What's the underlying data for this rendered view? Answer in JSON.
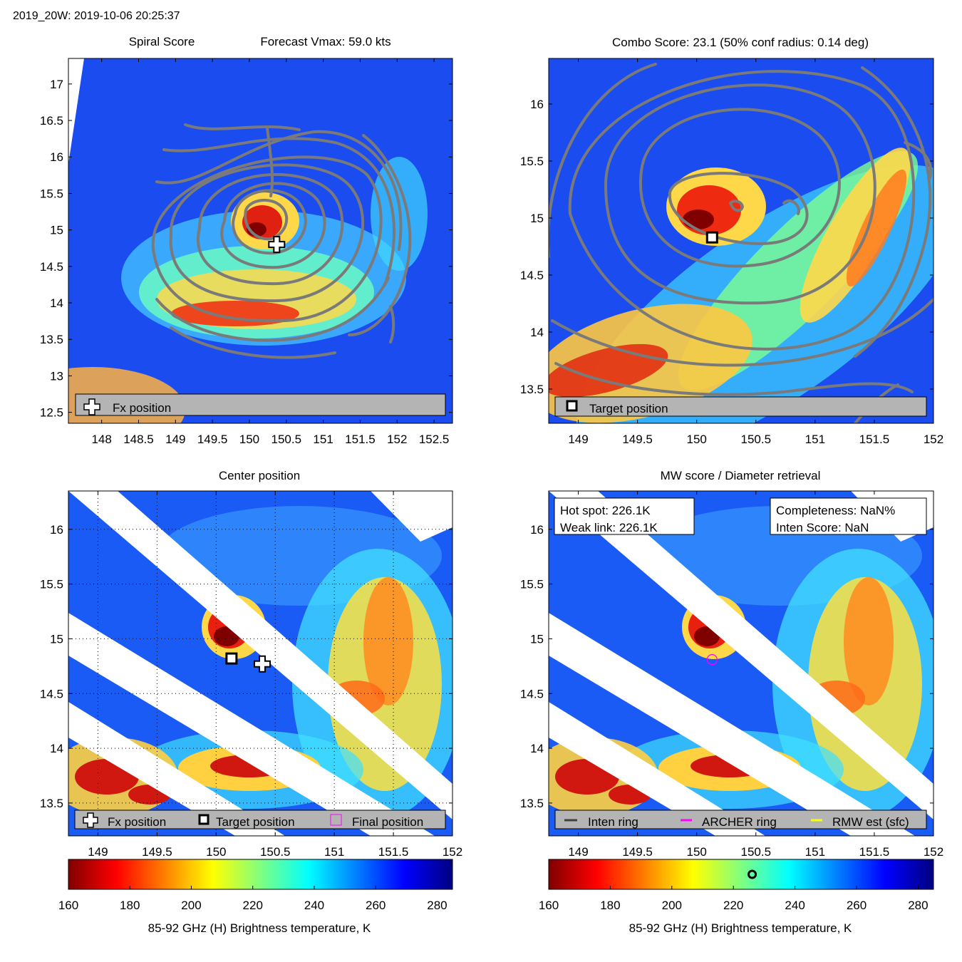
{
  "page_title": "2019_20W: 2019-10-06 20:25:37",
  "colors": {
    "contour": "#7a7a7a",
    "legend_bg": "#b4b4b4",
    "archer_ring": "#ff00ff",
    "rmw": "#ffff00",
    "inten_ring": "#404040",
    "background": "#ffffff"
  },
  "chart_data": [
    {
      "id": "spiral",
      "type": "heatmap",
      "title_left": "Spiral Score",
      "title_right": "Forecast Vmax: 59.0 kts",
      "xlim": [
        147.55,
        152.75
      ],
      "ylim": [
        12.35,
        17.35
      ],
      "xticks": [
        "148",
        "148.5",
        "149",
        "149.5",
        "150",
        "150.5",
        "151",
        "151.5",
        "152",
        "152.5"
      ],
      "yticks": [
        "12.5",
        "13",
        "13.5",
        "14",
        "14.5",
        "15",
        "15.5",
        "16",
        "16.5",
        "17"
      ],
      "contours": true,
      "markers": [
        {
          "kind": "fx-plus",
          "lon": 150.37,
          "lat": 14.8
        }
      ],
      "legend": [
        {
          "kind": "plus",
          "label": "Fx position"
        }
      ]
    },
    {
      "id": "combo",
      "type": "heatmap",
      "title": "Combo Score: 23.1  (50% conf radius: 0.14 deg)",
      "xlim": [
        148.75,
        152.0
      ],
      "ylim": [
        13.2,
        16.4
      ],
      "xticks": [
        "149",
        "149.5",
        "150",
        "150.5",
        "151",
        "151.5",
        "152"
      ],
      "yticks": [
        "13.5",
        "14",
        "14.5",
        "15",
        "15.5",
        "16"
      ],
      "contours": true,
      "markers": [
        {
          "kind": "target-square",
          "lon": 150.13,
          "lat": 14.83
        }
      ],
      "legend": [
        {
          "kind": "square",
          "label": "Target position"
        }
      ]
    },
    {
      "id": "center",
      "type": "heatmap",
      "title": "Center position",
      "xlim": [
        148.75,
        152.0
      ],
      "ylim": [
        13.2,
        16.35
      ],
      "xticks": [
        "149",
        "149.5",
        "150",
        "150.5",
        "151",
        "151.5",
        "152"
      ],
      "yticks": [
        "13.5",
        "14",
        "14.5",
        "15",
        "15.5",
        "16"
      ],
      "grid": true,
      "markers": [
        {
          "kind": "target-square",
          "lon": 150.13,
          "lat": 14.82
        },
        {
          "kind": "fx-plus",
          "lon": 150.39,
          "lat": 14.77
        }
      ],
      "legend": [
        {
          "kind": "plus",
          "label": "Fx position"
        },
        {
          "kind": "square",
          "label": "Target position"
        },
        {
          "kind": "magenta-square",
          "label": "Final position"
        }
      ]
    },
    {
      "id": "mw",
      "type": "heatmap",
      "title": "MW score / Diameter retrieval",
      "xlim": [
        148.75,
        152.0
      ],
      "ylim": [
        13.2,
        16.35
      ],
      "xticks": [
        "149",
        "149.5",
        "150",
        "150.5",
        "151",
        "151.5",
        "152"
      ],
      "yticks": [
        "13.5",
        "14",
        "14.5",
        "15",
        "15.5",
        "16"
      ],
      "markers": [
        {
          "kind": "magenta-ring",
          "lon": 150.13,
          "lat": 14.81
        }
      ],
      "info_left": [
        "Hot spot: 226.1K",
        "Weak link: 226.1K"
      ],
      "info_right": [
        "Completeness: NaN%",
        "Inten Score: NaN"
      ],
      "legend": [
        {
          "kind": "dark-line",
          "label": "Inten ring"
        },
        {
          "kind": "magenta-line",
          "label": "ARCHER ring"
        },
        {
          "kind": "yellow-line",
          "label": "RMW est (sfc)"
        }
      ]
    }
  ],
  "colorbars": [
    {
      "id": "cb-left",
      "ticks": [
        "160",
        "180",
        "200",
        "220",
        "240",
        "260",
        "280"
      ],
      "range": [
        160,
        285
      ],
      "label": "85-92 GHz (H) Brightness temperature, K"
    },
    {
      "id": "cb-right",
      "ticks": [
        "160",
        "180",
        "200",
        "220",
        "240",
        "260",
        "280"
      ],
      "range": [
        160,
        285
      ],
      "label": "85-92 GHz (H) Brightness temperature, K",
      "marker_value": 226.1
    }
  ]
}
